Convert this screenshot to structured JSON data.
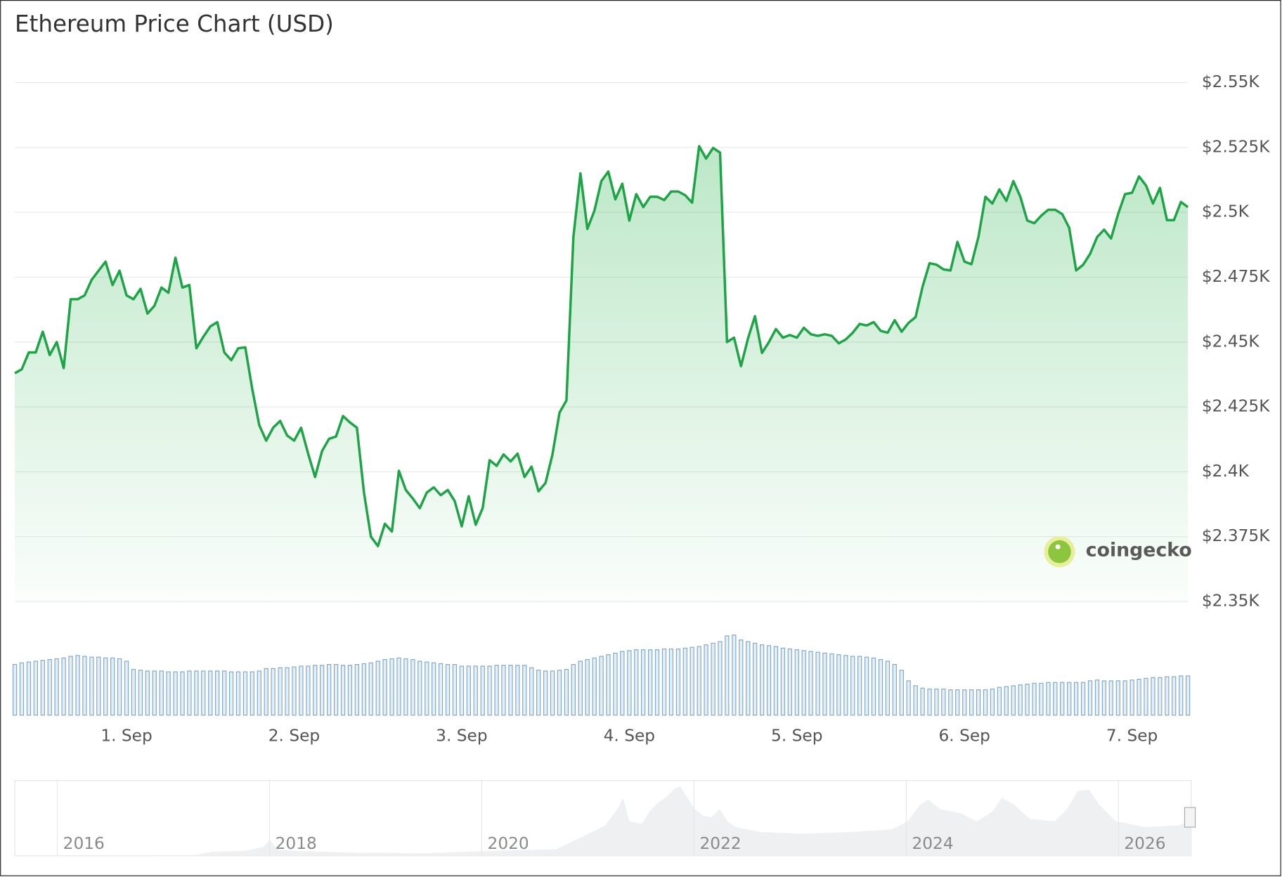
{
  "chart_data": {
    "type": "line",
    "title": "Ethereum Price Chart (USD)",
    "color": "#1ea446",
    "volume_color": "#7fa9c9",
    "grid": true,
    "xlim": [
      -16,
      152
    ],
    "xticks": [
      {
        "value": 0,
        "label": "1. Sep"
      },
      {
        "value": 24,
        "label": "2. Sep"
      },
      {
        "value": 48,
        "label": "3. Sep"
      },
      {
        "value": 72,
        "label": "4. Sep"
      },
      {
        "value": 96,
        "label": "5. Sep"
      },
      {
        "value": 120,
        "label": "6. Sep"
      },
      {
        "value": 144,
        "label": "7. Sep"
      }
    ],
    "ylim": [
      2350,
      2550
    ],
    "yticks": [
      {
        "value": 2350,
        "label": "$2.35K"
      },
      {
        "value": 2375,
        "label": "$2.375K"
      },
      {
        "value": 2400,
        "label": "$2.4K"
      },
      {
        "value": 2425,
        "label": "$2.425K"
      },
      {
        "value": 2450,
        "label": "$2.45K"
      },
      {
        "value": 2475,
        "label": "$2.475K"
      },
      {
        "value": 2500,
        "label": "$2.5K"
      },
      {
        "value": 2525,
        "label": "$2.525K"
      },
      {
        "value": 2550,
        "label": "$2.55K"
      }
    ],
    "x": [
      -16,
      -15,
      -14,
      -13,
      -12,
      -11,
      -10,
      -9,
      -8,
      -7,
      -6,
      -5,
      -4,
      -3,
      -2,
      -1,
      0,
      1,
      2,
      3,
      4,
      5,
      6,
      7,
      8,
      9,
      10,
      11,
      12,
      13,
      14,
      15,
      16,
      17,
      18,
      19,
      20,
      21,
      22,
      23,
      24,
      25,
      26,
      27,
      28,
      29,
      30,
      31,
      32,
      33,
      34,
      35,
      36,
      37,
      38,
      39,
      40,
      41,
      42,
      43,
      44,
      45,
      46,
      47,
      48,
      49,
      50,
      51,
      52,
      53,
      54,
      55,
      56,
      57,
      58,
      59,
      60,
      61,
      62,
      63,
      64,
      65,
      66,
      67,
      68,
      69,
      70,
      71,
      72,
      73,
      74,
      75,
      76,
      77,
      78,
      79,
      80,
      81,
      82,
      83,
      84,
      85,
      86,
      87,
      88,
      89,
      90,
      91,
      92,
      93,
      94,
      95,
      96,
      97,
      98,
      99,
      100,
      101,
      102,
      103,
      104,
      105,
      106,
      107,
      108,
      109,
      110,
      111,
      112,
      113,
      114,
      115,
      116,
      117,
      118,
      119,
      120,
      121,
      122,
      123,
      124,
      125,
      126,
      127,
      128,
      129,
      130,
      131,
      132,
      133,
      134,
      135,
      136,
      137,
      138,
      139,
      140,
      141,
      142,
      143,
      144,
      145,
      146,
      147,
      148,
      149,
      150,
      151,
      152
    ],
    "values": [
      2438,
      2439.5,
      2446,
      2446,
      2454,
      2445,
      2450,
      2440,
      2466.5,
      2466.5,
      2468,
      2474,
      2477.5,
      2481,
      2472,
      2477.5,
      2468,
      2466.5,
      2470.5,
      2461,
      2464,
      2471,
      2469,
      2482.5,
      2471,
      2472,
      2447.6,
      2452,
      2456,
      2457.7,
      2446,
      2443,
      2447.6,
      2448,
      2432,
      2418,
      2412,
      2417,
      2419.6,
      2414,
      2412,
      2417,
      2407,
      2398,
      2408,
      2412.7,
      2413.6,
      2421.5,
      2419,
      2417,
      2392,
      2375,
      2371.4,
      2380,
      2377,
      2400.4,
      2393,
      2389.7,
      2386,
      2392,
      2394,
      2391,
      2393,
      2388.7,
      2379,
      2390.6,
      2379.6,
      2386,
      2404.5,
      2402.3,
      2406.7,
      2404,
      2407,
      2398,
      2402,
      2392.5,
      2395.7,
      2406.7,
      2422.8,
      2427.5,
      2490.5,
      2515,
      2493.6,
      2500.6,
      2512,
      2515.7,
      2505,
      2511,
      2496.8,
      2507,
      2502,
      2506,
      2506,
      2504.7,
      2508,
      2508,
      2506.6,
      2503.7,
      2525.5,
      2520.7,
      2524.8,
      2523,
      2450,
      2451.7,
      2440.7,
      2451.4,
      2460,
      2445.8,
      2450,
      2455,
      2451.7,
      2452.7,
      2451.7,
      2455.5,
      2453,
      2452.4,
      2453,
      2452.4,
      2449.5,
      2451,
      2453.6,
      2457,
      2456.4,
      2457.7,
      2454.3,
      2453.6,
      2458.4,
      2454,
      2457.4,
      2459.6,
      2471.3,
      2480.4,
      2479.8,
      2478,
      2477.6,
      2488.6,
      2481,
      2480,
      2490.5,
      2506,
      2503.4,
      2508.8,
      2504.4,
      2512,
      2506,
      2496.8,
      2495.8,
      2498.7,
      2501,
      2501,
      2499.3,
      2494,
      2477.6,
      2479.8,
      2484,
      2490.5,
      2493.3,
      2489.9,
      2499.3,
      2507,
      2507.5,
      2513.8,
      2510.3,
      2503.4,
      2509.4,
      2497,
      2497,
      2504,
      2502
    ],
    "volume": [
      62,
      64,
      65,
      66,
      67,
      68,
      69,
      70,
      72,
      73,
      72,
      71,
      71,
      70,
      70,
      69,
      66,
      56,
      55,
      54,
      54,
      54,
      53,
      53,
      53,
      54,
      54,
      54,
      54,
      54,
      54,
      53,
      53,
      53,
      53,
      54,
      57,
      57,
      58,
      58,
      59,
      60,
      60,
      61,
      61,
      62,
      62,
      61,
      61,
      62,
      63,
      64,
      66,
      68,
      69,
      70,
      69,
      68,
      66,
      65,
      64,
      63,
      62,
      62,
      60,
      60,
      60,
      60,
      60,
      61,
      61,
      61,
      61,
      61,
      58,
      55,
      54,
      54,
      55,
      56,
      62,
      66,
      68,
      70,
      72,
      74,
      76,
      78,
      79,
      80,
      80,
      80,
      80,
      81,
      81,
      81,
      82,
      83,
      84,
      86,
      88,
      90,
      97,
      98,
      92,
      90,
      88,
      86,
      85,
      84,
      82,
      81,
      80,
      79,
      78,
      77,
      76,
      75,
      74,
      73,
      72,
      72,
      71,
      70,
      68,
      66,
      62,
      55,
      42,
      36,
      33,
      32,
      32,
      32,
      31,
      31,
      31,
      31,
      31,
      31,
      32,
      34,
      35,
      36,
      37,
      38,
      39,
      39,
      40,
      40,
      40,
      40,
      40,
      40,
      42,
      43,
      42,
      42,
      42,
      42,
      43,
      44,
      45,
      46,
      46,
      47,
      47,
      48,
      48
    ],
    "watermark": "coingecko",
    "navigator": {
      "labels": [
        "2016",
        "2018",
        "2020",
        "2022",
        "2024",
        "2026"
      ]
    }
  }
}
